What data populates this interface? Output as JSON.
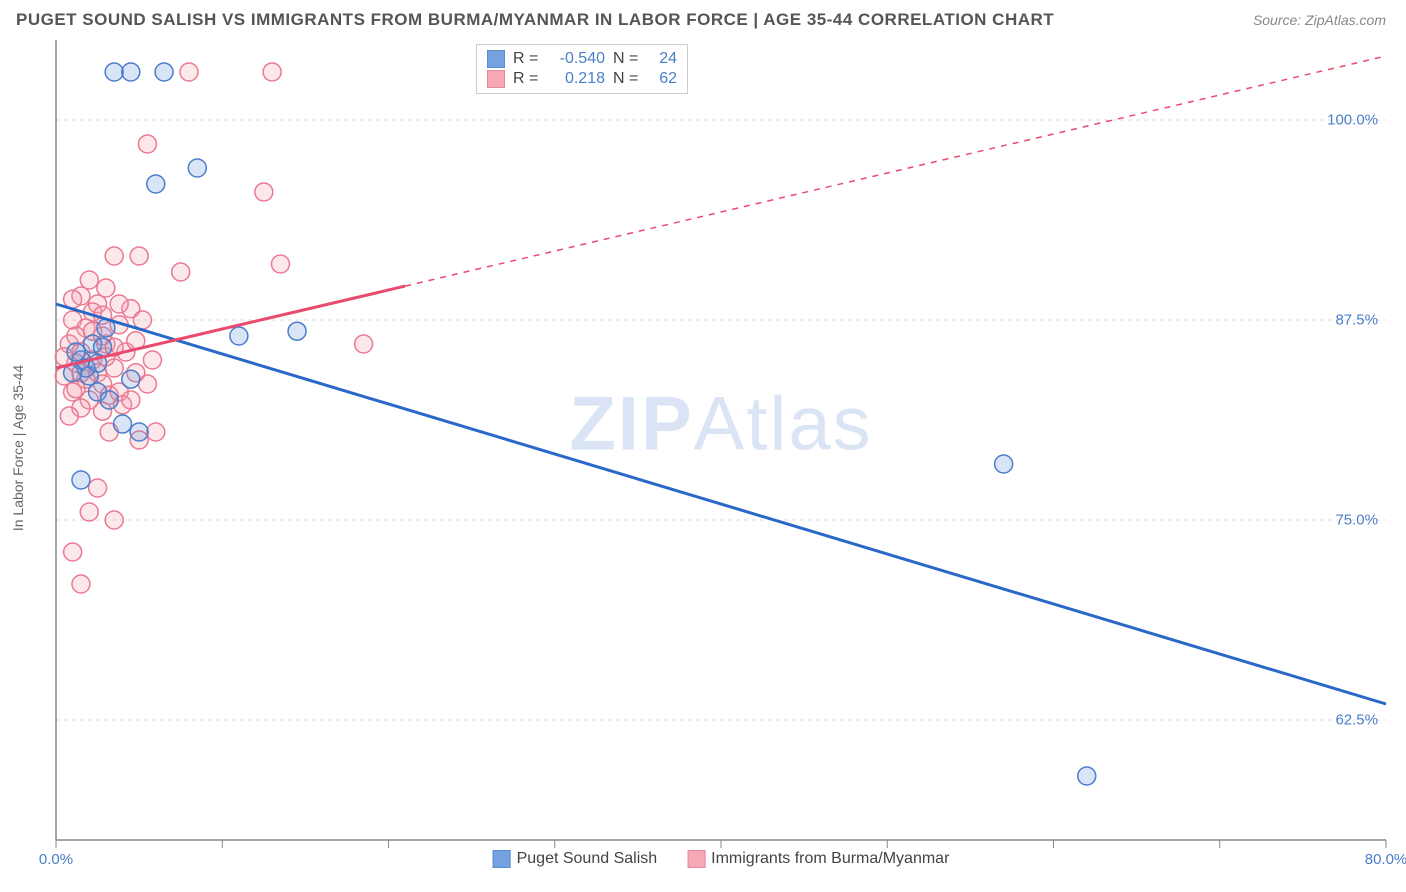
{
  "title": "PUGET SOUND SALISH VS IMMIGRANTS FROM BURMA/MYANMAR IN LABOR FORCE | AGE 35-44 CORRELATION CHART",
  "source": "Source: ZipAtlas.com",
  "watermark_zip": "ZIP",
  "watermark_atlas": "Atlas",
  "chart": {
    "type": "scatter",
    "y_axis_label": "In Labor Force | Age 35-44",
    "background_color": "#ffffff",
    "grid_color": "#dddddd",
    "axis_color": "#888888",
    "tick_label_color": "#4a7ec9",
    "tick_fontsize": 15,
    "label_fontsize": 14,
    "xlim": [
      0,
      80
    ],
    "ylim": [
      55,
      105
    ],
    "x_ticks": [
      0,
      10,
      20,
      30,
      40,
      50,
      60,
      70,
      80
    ],
    "x_tick_labels": {
      "0": "0.0%",
      "80": "80.0%"
    },
    "y_ticks": [
      62.5,
      75,
      87.5,
      100
    ],
    "y_tick_labels": {
      "62.5": "62.5%",
      "75": "75.0%",
      "87.5": "87.5%",
      "100": "100.0%"
    },
    "marker_radius": 9,
    "marker_stroke_width": 1.5,
    "marker_fill_opacity": 0.25,
    "trendline_width": 3,
    "series": [
      {
        "name": "Puget Sound Salish",
        "color": "#6699dd",
        "stroke_color": "#4a7ec9",
        "trendline_color": "#2968c8",
        "R": "-0.540",
        "N": "24",
        "points": [
          [
            3.5,
            103
          ],
          [
            4.5,
            103
          ],
          [
            6.5,
            103
          ],
          [
            3,
            87
          ],
          [
            8.5,
            97
          ],
          [
            6,
            96
          ],
          [
            1.5,
            85
          ],
          [
            2,
            84
          ],
          [
            1.8,
            84.5
          ],
          [
            2.2,
            86
          ],
          [
            1.2,
            85.5
          ],
          [
            2.5,
            84.8
          ],
          [
            1.5,
            77.5
          ],
          [
            2.5,
            83
          ],
          [
            4,
            81
          ],
          [
            5,
            80.5
          ],
          [
            11,
            86.5
          ],
          [
            14.5,
            86.8
          ],
          [
            1,
            84.2
          ],
          [
            2.8,
            85.8
          ],
          [
            3.2,
            82.5
          ],
          [
            4.5,
            83.8
          ],
          [
            57,
            78.5
          ],
          [
            62,
            59
          ]
        ],
        "trendline": {
          "x1": 0,
          "y1": 88.5,
          "x2": 80,
          "y2": 63.5,
          "dash_after_x": null
        }
      },
      {
        "name": "Immigrants from Burma/Myanmar",
        "color": "#f4a0b0",
        "stroke_color": "#e97a91",
        "trendline_color": "#e84b6d",
        "R": "0.218",
        "N": "62",
        "points": [
          [
            3,
            86
          ],
          [
            8,
            103
          ],
          [
            13,
            103
          ],
          [
            5.5,
            98.5
          ],
          [
            7.5,
            90.5
          ],
          [
            12.5,
            95.5
          ],
          [
            13.5,
            91
          ],
          [
            18.5,
            86
          ],
          [
            5,
            91.5
          ],
          [
            3.5,
            91.5
          ],
          [
            2,
            90
          ],
          [
            1.5,
            89
          ],
          [
            2.5,
            88.5
          ],
          [
            1,
            87.5
          ],
          [
            1.8,
            87
          ],
          [
            2.8,
            86.5
          ],
          [
            0.8,
            86
          ],
          [
            1.5,
            85.5
          ],
          [
            2.2,
            85
          ],
          [
            3,
            85.2
          ],
          [
            1.2,
            84.8
          ],
          [
            2.5,
            84.2
          ],
          [
            0.5,
            84
          ],
          [
            1.8,
            83.8
          ],
          [
            2.8,
            83.5
          ],
          [
            1,
            83
          ],
          [
            3.2,
            82.8
          ],
          [
            2,
            82.5
          ],
          [
            1.5,
            82
          ],
          [
            2.8,
            81.8
          ],
          [
            0.8,
            81.5
          ],
          [
            1.2,
            83.2
          ],
          [
            3.5,
            84.5
          ],
          [
            4.2,
            85.5
          ],
          [
            4.8,
            86.2
          ],
          [
            3.8,
            87.2
          ],
          [
            2.2,
            88
          ],
          [
            1,
            88.8
          ],
          [
            3,
            89.5
          ],
          [
            4.5,
            88.2
          ],
          [
            5.2,
            87.5
          ],
          [
            3.8,
            83
          ],
          [
            5,
            80
          ],
          [
            6,
            80.5
          ],
          [
            5.5,
            83.5
          ],
          [
            2.5,
            77
          ],
          [
            1,
            73
          ],
          [
            2,
            75.5
          ],
          [
            3.5,
            75
          ],
          [
            1.5,
            71
          ],
          [
            4,
            82.2
          ],
          [
            3.5,
            85.8
          ],
          [
            4.8,
            84.2
          ],
          [
            5.8,
            85
          ],
          [
            1.2,
            86.5
          ],
          [
            0.5,
            85.2
          ],
          [
            2.8,
            87.8
          ],
          [
            1.5,
            84.2
          ],
          [
            2.2,
            86.8
          ],
          [
            3.8,
            88.5
          ],
          [
            4.5,
            82.5
          ],
          [
            3.2,
            80.5
          ]
        ],
        "trendline": {
          "x1": 0,
          "y1": 84.5,
          "x2": 80,
          "y2": 104,
          "dash_after_x": 21
        }
      }
    ],
    "stats_box": {
      "R_label": "R =",
      "N_label": "N ="
    },
    "legend": {
      "series1_label": "Puget Sound Salish",
      "series2_label": "Immigrants from Burma/Myanmar"
    }
  }
}
